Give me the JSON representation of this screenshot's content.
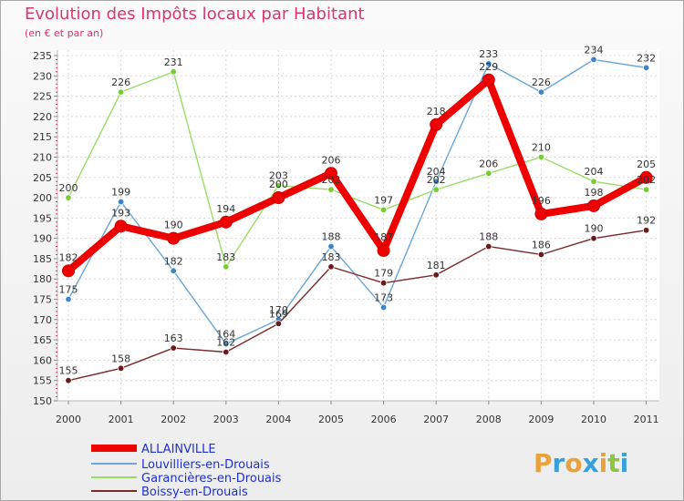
{
  "chart_data": {
    "type": "line",
    "title": "Evolution des Impôts locaux par Habitant",
    "subtitle": "(en € et par an)",
    "categories": [
      "2000",
      "2001",
      "2002",
      "2003",
      "2004",
      "2005",
      "2006",
      "2007",
      "2008",
      "2009",
      "2010",
      "2011"
    ],
    "ylim": [
      150,
      235
    ],
    "yticks": [
      150,
      155,
      160,
      165,
      170,
      175,
      180,
      185,
      190,
      195,
      200,
      205,
      210,
      215,
      220,
      225,
      230,
      235
    ],
    "grid": true,
    "legend_position": "bottom-left",
    "series": [
      {
        "name": "ALLAINVILLE",
        "color": "#ee0000",
        "emphasis": true,
        "values": [
          182,
          193,
          190,
          194,
          200,
          206,
          187,
          218,
          229,
          196,
          198,
          205
        ]
      },
      {
        "name": "Louvilliers-en-Drouais",
        "color": "#6aa6d6",
        "marker": "#3d85c6",
        "emphasis": false,
        "values": [
          175,
          199,
          182,
          164,
          170,
          188,
          173,
          204,
          233,
          226,
          234,
          232
        ]
      },
      {
        "name": "Garancières-en-Drouais",
        "color": "#99dd66",
        "marker": "#77cc33",
        "emphasis": false,
        "values": [
          200,
          226,
          231,
          183,
          203,
          202,
          197,
          202,
          206,
          210,
          204,
          202
        ]
      },
      {
        "name": "Boissy-en-Drouais",
        "color": "#7a2a2a",
        "marker": "#6b1a1a",
        "emphasis": false,
        "values": [
          155,
          158,
          163,
          162,
          169,
          183,
          179,
          181,
          188,
          186,
          190,
          192
        ]
      }
    ]
  },
  "labels": [
    {
      "series": 3,
      "index": 0,
      "text": "155",
      "pos": "above"
    },
    {
      "series": 3,
      "index": 1,
      "text": "158",
      "pos": "above"
    },
    {
      "series": 3,
      "index": 2,
      "text": "163",
      "pos": "above"
    },
    {
      "series": 3,
      "index": 3,
      "text": "162",
      "pos": "above"
    },
    {
      "series": 3,
      "index": 4,
      "text": "169",
      "pos": "above"
    },
    {
      "series": 3,
      "index": 5,
      "text": "183",
      "pos": "above"
    },
    {
      "series": 3,
      "index": 6,
      "text": "179",
      "pos": "above"
    },
    {
      "series": 3,
      "index": 7,
      "text": "181",
      "pos": "above"
    },
    {
      "series": 3,
      "index": 8,
      "text": "188",
      "pos": "above"
    },
    {
      "series": 3,
      "index": 9,
      "text": "186",
      "pos": "above"
    },
    {
      "series": 3,
      "index": 10,
      "text": "190",
      "pos": "above"
    },
    {
      "series": 3,
      "index": 11,
      "text": "192",
      "pos": "above"
    },
    {
      "series": 1,
      "index": 0,
      "text": "175",
      "pos": "above"
    },
    {
      "series": 1,
      "index": 1,
      "text": "199",
      "pos": "above"
    },
    {
      "series": 1,
      "index": 2,
      "text": "182",
      "pos": "above"
    },
    {
      "series": 1,
      "index": 3,
      "text": "164",
      "pos": "above"
    },
    {
      "series": 1,
      "index": 4,
      "text": "170",
      "pos": "above"
    },
    {
      "series": 1,
      "index": 5,
      "text": "188",
      "pos": "above"
    },
    {
      "series": 1,
      "index": 6,
      "text": "173",
      "pos": "above"
    },
    {
      "series": 1,
      "index": 7,
      "text": "204",
      "pos": "above"
    },
    {
      "series": 1,
      "index": 8,
      "text": "233",
      "pos": "above"
    },
    {
      "series": 1,
      "index": 9,
      "text": "226",
      "pos": "above"
    },
    {
      "series": 1,
      "index": 10,
      "text": "234",
      "pos": "above"
    },
    {
      "series": 1,
      "index": 11,
      "text": "232",
      "pos": "above"
    },
    {
      "series": 2,
      "index": 0,
      "text": "200",
      "pos": "above"
    },
    {
      "series": 2,
      "index": 1,
      "text": "226",
      "pos": "above"
    },
    {
      "series": 2,
      "index": 2,
      "text": "231",
      "pos": "above"
    },
    {
      "series": 2,
      "index": 3,
      "text": "183",
      "pos": "above"
    },
    {
      "series": 2,
      "index": 4,
      "text": "203",
      "pos": "above"
    },
    {
      "series": 2,
      "index": 5,
      "text": "202",
      "pos": "above"
    },
    {
      "series": 2,
      "index": 6,
      "text": "197",
      "pos": "above"
    },
    {
      "series": 2,
      "index": 7,
      "text": "202",
      "pos": "above"
    },
    {
      "series": 2,
      "index": 8,
      "text": "206",
      "pos": "above"
    },
    {
      "series": 2,
      "index": 9,
      "text": "210",
      "pos": "above"
    },
    {
      "series": 2,
      "index": 10,
      "text": "204",
      "pos": "above"
    },
    {
      "series": 2,
      "index": 11,
      "text": "202",
      "pos": "above"
    },
    {
      "series": 0,
      "index": 0,
      "text": "182",
      "pos": "above"
    },
    {
      "series": 0,
      "index": 1,
      "text": "193",
      "pos": "above"
    },
    {
      "series": 0,
      "index": 2,
      "text": "190",
      "pos": "above"
    },
    {
      "series": 0,
      "index": 3,
      "text": "194",
      "pos": "above"
    },
    {
      "series": 0,
      "index": 4,
      "text": "200",
      "pos": "above"
    },
    {
      "series": 0,
      "index": 5,
      "text": "206",
      "pos": "above"
    },
    {
      "series": 0,
      "index": 6,
      "text": "187",
      "pos": "above"
    },
    {
      "series": 0,
      "index": 7,
      "text": "218",
      "pos": "above"
    },
    {
      "series": 0,
      "index": 8,
      "text": "229",
      "pos": "above"
    },
    {
      "series": 0,
      "index": 9,
      "text": "196",
      "pos": "above"
    },
    {
      "series": 0,
      "index": 10,
      "text": "198",
      "pos": "above"
    },
    {
      "series": 0,
      "index": 11,
      "text": "205",
      "pos": "above"
    }
  ],
  "logo": {
    "text": "Proxiti",
    "letters": [
      {
        "ch": "P",
        "color": "#e9a23b"
      },
      {
        "ch": "r",
        "color": "#3aa0d8"
      },
      {
        "ch": "o",
        "color": "#e9a23b"
      },
      {
        "ch": "x",
        "color": "#3aa0d8"
      },
      {
        "ch": "i",
        "color": "#e9a23b"
      },
      {
        "ch": "t",
        "color": "#8dc63f"
      },
      {
        "ch": "i",
        "color": "#3aa0d8"
      }
    ]
  }
}
